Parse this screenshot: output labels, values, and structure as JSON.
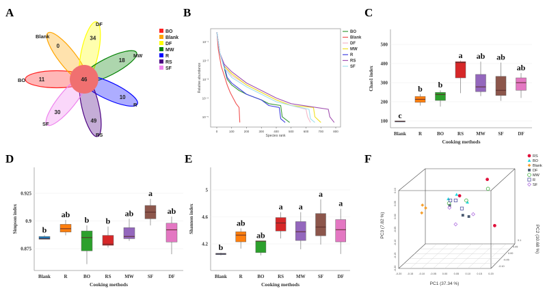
{
  "panel_labels": [
    "A",
    "B",
    "C",
    "D",
    "E",
    "F"
  ],
  "colors": {
    "Blank": "#1f77b4",
    "R": "#ff7f0e",
    "BO": "#2ca02c",
    "RS": "#d62728",
    "MW": "#9467bd",
    "SF": "#8c564b",
    "DF": "#e377c2"
  },
  "chart_data": [
    {
      "panel": "A",
      "type": "venn-flower",
      "core": {
        "value": "46",
        "color": "#f07070"
      },
      "petals": [
        {
          "name": "BO",
          "value": "11",
          "color": "#ff2020"
        },
        {
          "name": "Blank",
          "value": "0",
          "color": "#ffa500"
        },
        {
          "name": "DF",
          "value": "34",
          "color": "#ffff00"
        },
        {
          "name": "MW",
          "value": "18",
          "color": "#008000"
        },
        {
          "name": "R",
          "value": "10",
          "color": "#0000ff"
        },
        {
          "name": "RS",
          "value": "49",
          "color": "#4b0082"
        },
        {
          "name": "SF",
          "value": "30",
          "color": "#ee82ee"
        }
      ],
      "legend": [
        "BO",
        "Blank",
        "DF",
        "MW",
        "R",
        "RS",
        "SF"
      ]
    },
    {
      "panel": "B",
      "type": "line",
      "title": "",
      "xlabel": "Species rank",
      "ylabel": "Relative abundance",
      "xlim": [
        0,
        800
      ],
      "ylim_log10": [
        -5.3,
        -0.4
      ],
      "xticks": [
        "0",
        "100",
        "200",
        "300",
        "400",
        "500",
        "600",
        "700",
        "800"
      ],
      "yticks": [
        "10⁻¹",
        "10⁻²",
        "10⁻³",
        "10⁻⁴",
        "10⁻⁵"
      ],
      "legend_placement": "right",
      "series": [
        {
          "name": "BO",
          "color": "#3a9a3a",
          "points": [
            [
              1,
              -0.5
            ],
            [
              20,
              -1.6
            ],
            [
              50,
              -2.4
            ],
            [
              70,
              -3.0
            ],
            [
              100,
              -3.3
            ],
            [
              150,
              -3.6
            ],
            [
              200,
              -3.8
            ],
            [
              300,
              -4.1
            ],
            [
              350,
              -4.3
            ],
            [
              430,
              -4.4
            ],
            [
              440,
              -5.0
            ],
            [
              490,
              -5.3
            ]
          ]
        },
        {
          "name": "Blank",
          "color": "#f05050",
          "points": [
            [
              1,
              -0.5
            ],
            [
              10,
              -1.4
            ],
            [
              30,
              -2.3
            ],
            [
              50,
              -2.8
            ],
            [
              70,
              -3.3
            ],
            [
              90,
              -3.7
            ],
            [
              110,
              -4.0
            ],
            [
              130,
              -4.3
            ],
            [
              150,
              -4.5
            ],
            [
              155,
              -5.3
            ]
          ]
        },
        {
          "name": "DF",
          "color": "#f4b8c8",
          "points": [
            [
              1,
              -0.5
            ],
            [
              20,
              -1.6
            ],
            [
              50,
              -2.3
            ],
            [
              100,
              -2.8
            ],
            [
              200,
              -3.3
            ],
            [
              300,
              -3.7
            ],
            [
              400,
              -4.1
            ],
            [
              500,
              -4.4
            ],
            [
              600,
              -4.6
            ],
            [
              610,
              -5.0
            ],
            [
              630,
              -5.3
            ]
          ]
        },
        {
          "name": "MW",
          "color": "#f0e020",
          "points": [
            [
              1,
              -0.5
            ],
            [
              20,
              -1.6
            ],
            [
              50,
              -2.3
            ],
            [
              100,
              -2.7
            ],
            [
              200,
              -3.3
            ],
            [
              300,
              -3.7
            ],
            [
              400,
              -4.1
            ],
            [
              500,
              -4.4
            ],
            [
              650,
              -4.5
            ],
            [
              660,
              -5.0
            ],
            [
              700,
              -5.3
            ]
          ]
        },
        {
          "name": "R",
          "color": "#4040e0",
          "points": [
            [
              1,
              -0.5
            ],
            [
              20,
              -1.6
            ],
            [
              50,
              -2.3
            ],
            [
              70,
              -2.9
            ],
            [
              100,
              -3.2
            ],
            [
              150,
              -3.5
            ],
            [
              200,
              -3.8
            ],
            [
              300,
              -4.1
            ],
            [
              350,
              -4.4
            ],
            [
              420,
              -4.5
            ],
            [
              430,
              -5.1
            ],
            [
              460,
              -5.3
            ]
          ]
        },
        {
          "name": "RS",
          "color": "#a050b0",
          "points": [
            [
              1,
              -0.5
            ],
            [
              20,
              -1.6
            ],
            [
              50,
              -2.2
            ],
            [
              100,
              -2.6
            ],
            [
              200,
              -3.2
            ],
            [
              300,
              -3.6
            ],
            [
              400,
              -4.0
            ],
            [
              500,
              -4.3
            ],
            [
              750,
              -4.6
            ],
            [
              760,
              -5.0
            ],
            [
              790,
              -5.3
            ]
          ]
        },
        {
          "name": "SF",
          "color": "#a0e0f0",
          "points": [
            [
              1,
              -0.5
            ],
            [
              20,
              -1.6
            ],
            [
              50,
              -2.4
            ],
            [
              100,
              -2.9
            ],
            [
              200,
              -3.4
            ],
            [
              300,
              -3.8
            ],
            [
              400,
              -4.2
            ],
            [
              500,
              -4.4
            ],
            [
              620,
              -4.6
            ],
            [
              630,
              -5.1
            ],
            [
              660,
              -5.3
            ]
          ]
        }
      ]
    },
    {
      "panel": "C",
      "type": "box",
      "xlabel": "Cooking methods",
      "ylabel": "Chao1 index",
      "ylim": [
        60,
        580
      ],
      "yticks": [
        100,
        200,
        300,
        400,
        500
      ],
      "categories": [
        "Blank",
        "R",
        "BO",
        "RS",
        "MW",
        "SF",
        "DF"
      ],
      "boxes": [
        [
          97,
          97,
          98,
          100,
          100
        ],
        [
          180,
          197,
          213,
          228,
          240
        ],
        [
          175,
          207,
          238,
          249,
          260
        ],
        [
          245,
          325,
          405,
          410,
          415
        ],
        [
          230,
          253,
          278,
          343,
          410
        ],
        [
          205,
          233,
          260,
          333,
          405
        ],
        [
          220,
          260,
          300,
          325,
          350
        ]
      ],
      "letters": [
        "c",
        "b",
        "b",
        "a",
        "ab",
        "ab",
        "ab"
      ]
    },
    {
      "panel": "D",
      "type": "box",
      "xlabel": "Cooking methods",
      "ylabel": "Simpson index",
      "ylim": [
        0.8555,
        0.9475
      ],
      "yticks": [
        0.875,
        0.9,
        0.925
      ],
      "ytick_labels": [
        "0.875",
        "0.9",
        "0.925"
      ],
      "categories": [
        "Blank",
        "R",
        "BO",
        "RS",
        "MW",
        "SF",
        "DF"
      ],
      "boxes": [
        [
          0.8835,
          0.8835,
          0.884,
          0.886,
          0.887
        ],
        [
          0.887,
          0.89,
          0.893,
          0.897,
          0.901
        ],
        [
          0.861,
          0.873,
          0.885,
          0.891,
          0.896
        ],
        [
          0.876,
          0.878,
          0.879,
          0.887,
          0.895
        ],
        [
          0.882,
          0.884,
          0.886,
          0.894,
          0.902
        ],
        [
          0.896,
          0.902,
          0.908,
          0.914,
          0.92
        ],
        [
          0.87,
          0.881,
          0.892,
          0.898,
          0.904
        ]
      ],
      "letters": [
        "b",
        "ab",
        "b",
        "b",
        "ab",
        "a",
        "ab"
      ]
    },
    {
      "panel": "E",
      "type": "box",
      "xlabel": "Cooking methods",
      "ylabel": "Shannon index",
      "ylim": [
        3.88,
        5.3
      ],
      "yticks": [
        4.2,
        4.6,
        5
      ],
      "ytick_labels": [
        "4.2",
        "4.6",
        "5"
      ],
      "categories": [
        "Blank",
        "R",
        "BO",
        "RS",
        "MW",
        "SF",
        "DF"
      ],
      "boxes": [
        [
          4.03,
          4.04,
          4.05,
          4.06,
          4.07
        ],
        [
          4.13,
          4.23,
          4.33,
          4.38,
          4.43
        ],
        [
          4.03,
          4.07,
          4.24,
          4.245,
          4.245
        ],
        [
          4.28,
          4.39,
          4.51,
          4.59,
          4.67
        ],
        [
          4.12,
          4.25,
          4.38,
          4.53,
          4.67
        ],
        [
          4.19,
          4.32,
          4.45,
          4.65,
          4.86
        ],
        [
          4.05,
          4.23,
          4.41,
          4.56,
          4.72
        ]
      ],
      "letters": [
        "b",
        "ab",
        "ab",
        "a",
        "a",
        "a",
        "a"
      ]
    },
    {
      "panel": "F",
      "type": "scatter",
      "xlabel": "PC1 (37.34 %)",
      "ylabel": "PC3 (7.82 %)",
      "zlabel": "PC2 (10.68 %)",
      "xticks": [
        "-0.20",
        "-0.15",
        "-0.10",
        "-0.05",
        "0.00",
        "0.05",
        "0.10",
        "0.15",
        "0.20"
      ],
      "yticks": [
        "0.10",
        "0.05",
        "0.00",
        "-0.05",
        "-0.10",
        "-0.15",
        "-0.20"
      ],
      "zticks": [
        "-0.10",
        "-0.05",
        "0.00",
        "0.05",
        "0.1"
      ],
      "legend_placement": "top-right",
      "series": [
        {
          "name": "RS",
          "marker": "dot",
          "color": "#e0103a",
          "points": [
            [
              0.184,
              0.143
            ],
            [
              0.064,
              0.08
            ],
            [
              0.216,
              -0.035
            ]
          ]
        },
        {
          "name": "BO",
          "marker": "triangle",
          "color": "#20d8e0",
          "points": [
            [
              0.015,
              0.068
            ],
            [
              0.051,
              0.085
            ],
            [
              0.098,
              0.055
            ]
          ]
        },
        {
          "name": "Blank",
          "marker": "diamond-filled",
          "color": "#f5a030",
          "points": [
            [
              -0.097,
              0.044
            ],
            [
              -0.083,
              0.033
            ],
            [
              -0.1,
              0.014
            ]
          ]
        },
        {
          "name": "DF",
          "marker": "square-filled",
          "color": "#4a5a70",
          "points": [
            [
              0.021,
              0.043
            ],
            [
              0.078,
              0.005
            ],
            [
              0.104,
              0.0
            ]
          ]
        },
        {
          "name": "MW",
          "marker": "circle-open",
          "color": "#40b040",
          "points": [
            [
              0.187,
              0.107
            ],
            [
              0.018,
              0.051
            ],
            [
              0.093,
              0.062
            ]
          ]
        },
        {
          "name": "R",
          "marker": "square-open",
          "color": "#5050a0",
          "points": [
            [
              0.024,
              0.062
            ],
            [
              0.047,
              0.062
            ],
            [
              0.074,
              0.031
            ]
          ]
        },
        {
          "name": "SF",
          "marker": "diamond-open",
          "color": "#b070e0",
          "points": [
            [
              0.02,
              0.034
            ],
            [
              0.123,
              0.009
            ],
            [
              0.047,
              -0.03
            ]
          ]
        }
      ]
    }
  ]
}
